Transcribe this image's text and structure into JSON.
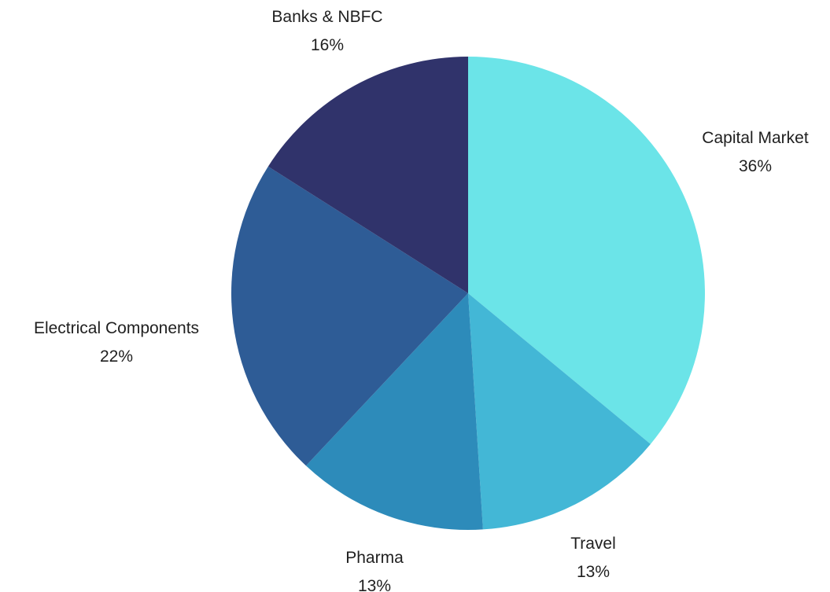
{
  "chart_data": {
    "type": "pie",
    "slices": [
      {
        "label": "Capital Market",
        "value": 36,
        "value_label": "36%",
        "color": "#6be4e8"
      },
      {
        "label": "Travel",
        "value": 13,
        "value_label": "13%",
        "color": "#43b7d6"
      },
      {
        "label": "Pharma",
        "value": 13,
        "value_label": "13%",
        "color": "#2d8bba"
      },
      {
        "label": "Electrical Components",
        "value": 22,
        "value_label": "22%",
        "color": "#2e5c96"
      },
      {
        "label": "Banks & NBFC",
        "value": 16,
        "value_label": "16%",
        "color": "#30336b"
      }
    ],
    "start_angle_deg": 0,
    "direction": "clockwise",
    "legend": "none"
  }
}
